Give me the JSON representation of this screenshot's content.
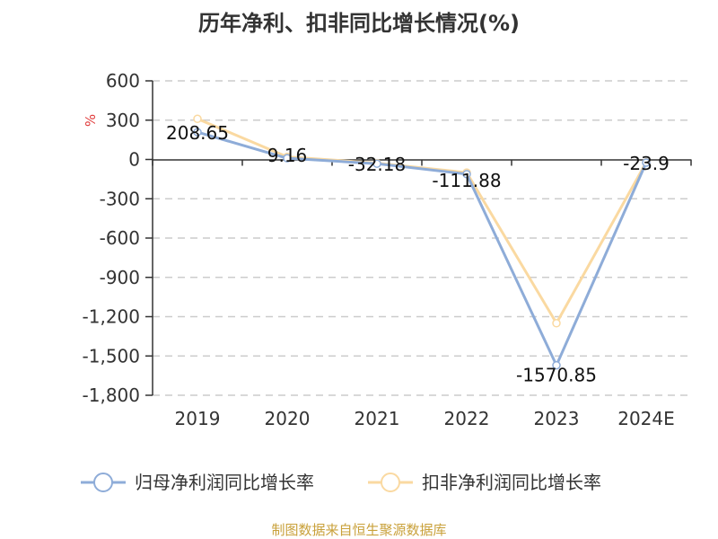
{
  "chart_data": {
    "type": "line",
    "title": "历年净利、扣非同比增长情况(%)",
    "unit": "%",
    "categories": [
      "2019",
      "2020",
      "2021",
      "2022",
      "2023",
      "2024E"
    ],
    "ylim": [
      -1800,
      600
    ],
    "yticks": [
      600,
      300,
      0,
      -300,
      -600,
      -900,
      -1200,
      -1500,
      -1800
    ],
    "ytick_labels": [
      "600",
      "300",
      "0",
      "-300",
      "-600",
      "-900",
      "-1,200",
      "-1,500",
      "-1,800"
    ],
    "grid": true,
    "legend_position": "bottom",
    "series": [
      {
        "name": "归母净利润同比增长率",
        "color": "#8eacd8",
        "values": [
          208.65,
          9.16,
          -32.18,
          -111.88,
          -1570.85,
          -23.9
        ],
        "labels": [
          "208.65",
          "9.16",
          "-32.18",
          "-111.88",
          "-1570.85",
          "-23.9"
        ]
      },
      {
        "name": "扣非净利润同比增长率",
        "color": "#fad9a1",
        "values": [
          310,
          20,
          -28,
          -100,
          -1250,
          -22
        ]
      }
    ]
  },
  "source": "制图数据来自恒生聚源数据库"
}
